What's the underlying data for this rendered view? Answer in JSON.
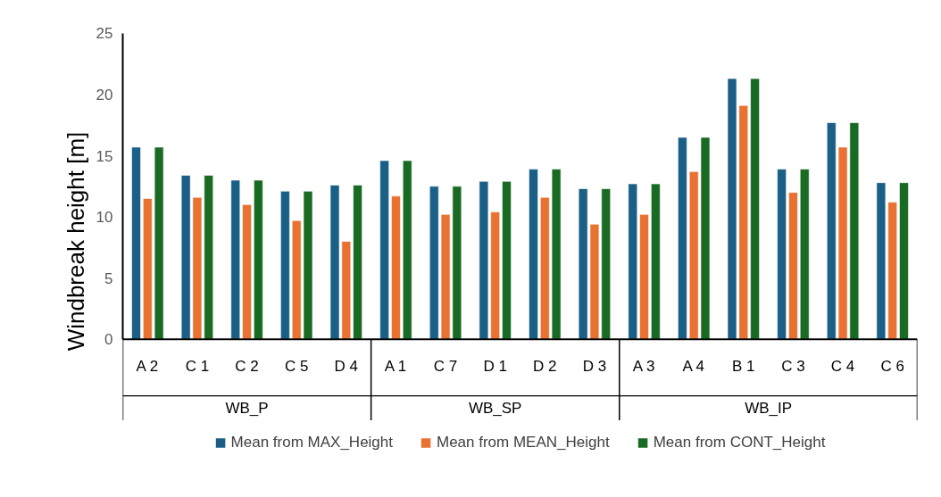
{
  "chart_data": {
    "type": "bar",
    "ylabel": "Windbreak height [m]",
    "categories": [
      "A 2",
      "C 1",
      "C 2",
      "C 5",
      "D 4",
      "A 1",
      "C 7",
      "D 1",
      "D 2",
      "D 3",
      "A 3",
      "A 4",
      "B 1",
      "C 3",
      "C 4",
      "C 6"
    ],
    "series": [
      {
        "name": "Mean from MAX_Height",
        "color": "#1a5f86",
        "values": [
          15.7,
          13.4,
          13.0,
          12.1,
          12.6,
          14.6,
          12.5,
          12.9,
          13.9,
          12.3,
          12.7,
          16.5,
          21.3,
          13.9,
          17.7,
          12.8
        ]
      },
      {
        "name": "Mean from MEAN_Height",
        "color": "#e97132",
        "values": [
          11.5,
          11.6,
          11.0,
          9.7,
          8.0,
          11.7,
          10.2,
          10.4,
          11.6,
          9.4,
          10.2,
          13.7,
          19.1,
          12.0,
          15.7,
          11.2
        ]
      },
      {
        "name": "Mean from CONT_Height",
        "color": "#196b24",
        "values": [
          15.7,
          13.4,
          13.0,
          12.1,
          12.6,
          14.6,
          12.5,
          12.9,
          13.9,
          12.3,
          12.7,
          16.5,
          21.3,
          13.9,
          17.7,
          12.8
        ]
      }
    ],
    "annotations": [
      "WB_P",
      "WB_SP",
      "WB_IP"
    ],
    "ylim": [
      0,
      25
    ],
    "yticks": [
      0,
      5,
      10,
      15,
      20,
      25
    ],
    "grid": false,
    "legend": "bottom"
  }
}
